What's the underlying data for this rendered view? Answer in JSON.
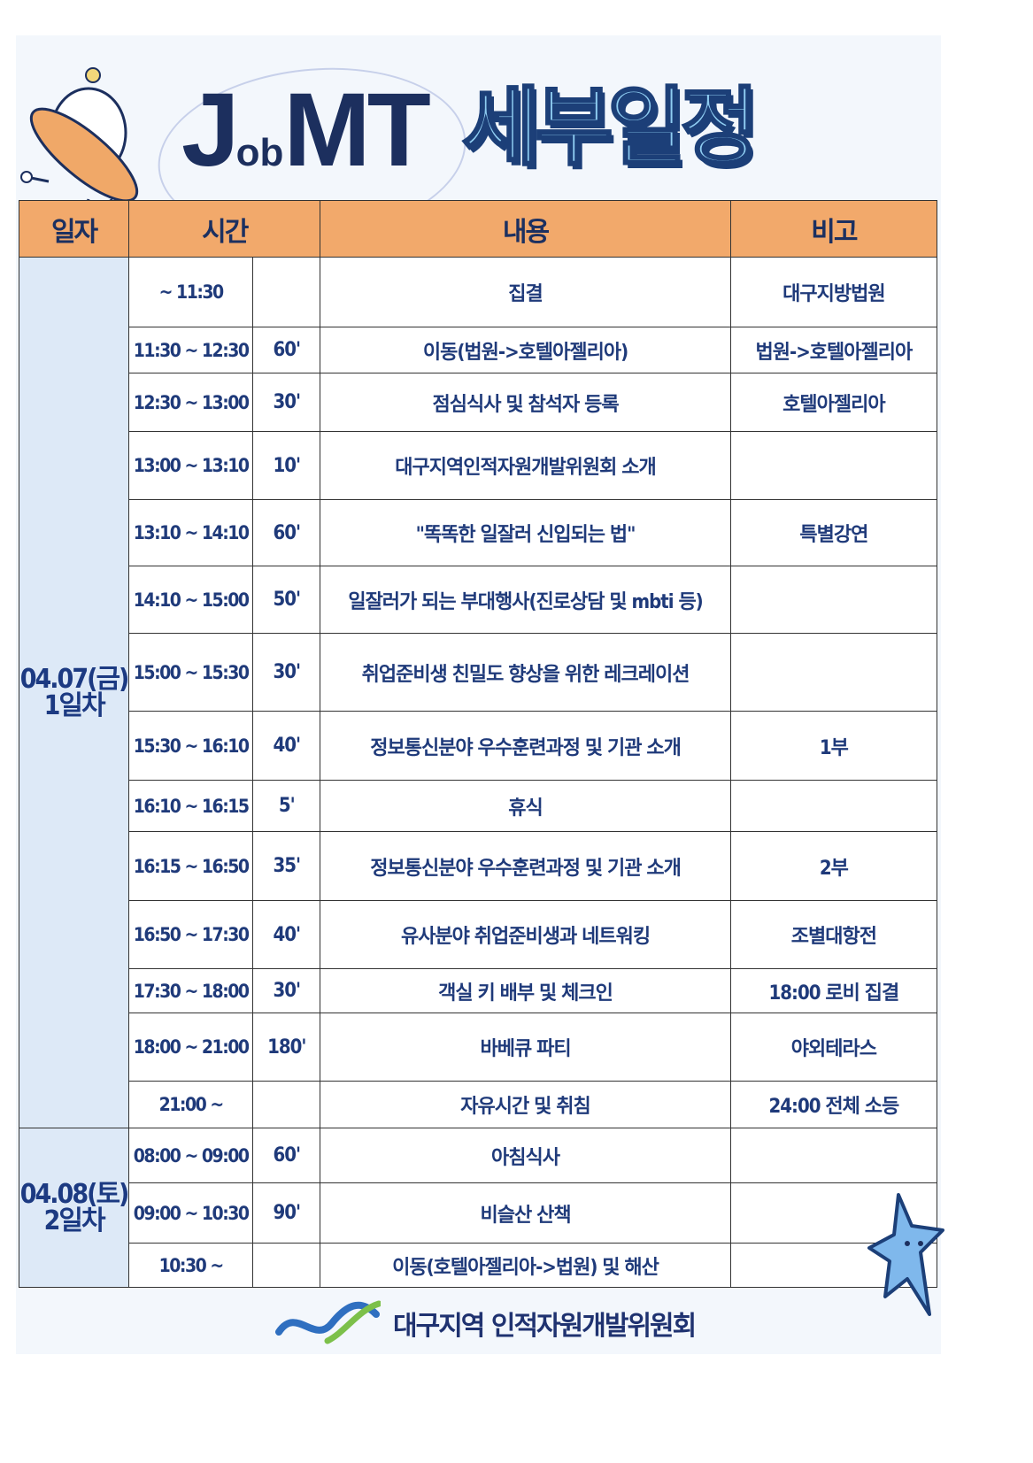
{
  "header": {
    "title_en_j": "J",
    "title_en_ob": "ob",
    "title_en_mt": "MT",
    "title_ko": "세부일정"
  },
  "table": {
    "columns": [
      "일자",
      "시간",
      "내용",
      "비고"
    ],
    "days": [
      {
        "label": "04.07(금)",
        "sub": "1일차"
      },
      {
        "label": "04.08(토)",
        "sub": "2일차"
      }
    ],
    "rows": [
      {
        "day": 0,
        "time": "~ 11:30",
        "duration": "",
        "content": "집결",
        "note": "대구지방법원"
      },
      {
        "day": 0,
        "time": "11:30 ~ 12:30",
        "duration": "60'",
        "content": "이동(법원->호텔아젤리아)",
        "note": "법원->호텔아젤리아"
      },
      {
        "day": 0,
        "time": "12:30 ~ 13:00",
        "duration": "30'",
        "content": "점심식사 및 참석자 등록",
        "note": "호텔아젤리아"
      },
      {
        "day": 0,
        "time": "13:00 ~ 13:10",
        "duration": "10'",
        "content": "대구지역인적자원개발위원회 소개",
        "note": ""
      },
      {
        "day": 0,
        "time": "13:10 ~ 14:10",
        "duration": "60'",
        "content": "\"똑똑한 일잘러 신입되는 법\"",
        "note": "특별강연"
      },
      {
        "day": 0,
        "time": "14:10 ~ 15:00",
        "duration": "50'",
        "content": "일잘러가 되는 부대행사(진로상담 및 mbti 등)",
        "note": ""
      },
      {
        "day": 0,
        "time": "15:00 ~ 15:30",
        "duration": "30'",
        "content": "취업준비생 친밀도 향상을 위한 레크레이션",
        "note": ""
      },
      {
        "day": 0,
        "time": "15:30 ~ 16:10",
        "duration": "40'",
        "content": "정보통신분야 우수훈련과정 및 기관 소개",
        "note": "1부"
      },
      {
        "day": 0,
        "time": "16:10 ~ 16:15",
        "duration": "5'",
        "content": "휴식",
        "note": ""
      },
      {
        "day": 0,
        "time": "16:15 ~ 16:50",
        "duration": "35'",
        "content": "정보통신분야 우수훈련과정 및 기관 소개",
        "note": "2부"
      },
      {
        "day": 0,
        "time": "16:50 ~ 17:30",
        "duration": "40'",
        "content": "유사분야 취업준비생과 네트워킹",
        "note": "조별대항전"
      },
      {
        "day": 0,
        "time": "17:30 ~ 18:00",
        "duration": "30'",
        "content": "객실 키 배부 및 체크인",
        "note": "18:00 로비 집결"
      },
      {
        "day": 0,
        "time": "18:00 ~ 21:00",
        "duration": "180'",
        "content": "바베큐 파티",
        "note": "야외테라스"
      },
      {
        "day": 0,
        "time": "21:00 ~",
        "duration": "",
        "content": "자유시간 및 취침",
        "note": "24:00 전체 소등"
      },
      {
        "day": 1,
        "time": "08:00 ~ 09:00",
        "duration": "60'",
        "content": "아침식사",
        "note": ""
      },
      {
        "day": 1,
        "time": "09:00 ~ 10:30",
        "duration": "90'",
        "content": "비슬산 산책",
        "note": ""
      },
      {
        "day": 1,
        "time": "10:30 ~",
        "duration": "",
        "content": "이동(호텔아젤리아->법원) 및 해산",
        "note": ""
      }
    ]
  },
  "footer": {
    "org": "대구지역 인적자원개발위원회"
  },
  "colors": {
    "header_bg": "#f2a96b",
    "date_bg": "#dde9f7",
    "text": "#1f3a7a",
    "title_fill": "#8fcdf2"
  }
}
